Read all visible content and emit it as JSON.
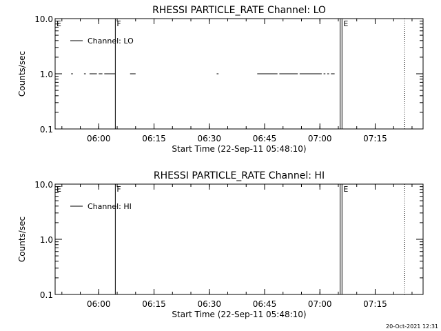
{
  "footer": {
    "timestamp": "20-Oct-2021 12:31"
  },
  "chart_data": [
    {
      "type": "line",
      "title": "RHESSI PARTICLE_RATE Channel: LO",
      "xlabel": "Start Time (22-Sep-11 05:48:10)",
      "ylabel": "Counts/sec",
      "yscale": "log",
      "ylim": [
        0.1,
        10.0
      ],
      "yticks": [
        {
          "value": 0.1,
          "label": "0.1"
        },
        {
          "value": 1.0,
          "label": "1.0"
        },
        {
          "value": 10.0,
          "label": "10.0"
        }
      ],
      "xlim": [
        "05:48:10",
        "07:28:00"
      ],
      "xticks": [
        "06:00",
        "06:15",
        "06:30",
        "06:45",
        "07:00",
        "07:15"
      ],
      "legend": {
        "placement": "top-left",
        "entries": [
          "Channel: LO"
        ]
      },
      "series": [
        {
          "name": "Channel: LO",
          "segments": [
            {
              "x": [
                "05:52:30",
                "05:53:00"
              ],
              "y": 1.0
            },
            {
              "x": [
                "05:56:00",
                "05:56:30"
              ],
              "y": 1.0
            },
            {
              "x": [
                "05:57:30",
                "05:59:30"
              ],
              "y": 1.0
            },
            {
              "x": [
                "06:00:00",
                "06:01:00"
              ],
              "y": 1.0
            },
            {
              "x": [
                "06:01:30",
                "06:04:30"
              ],
              "y": 1.0
            },
            {
              "x": [
                "06:08:30",
                "06:10:00"
              ],
              "y": 1.0
            },
            {
              "x": [
                "06:32:00",
                "06:32:30"
              ],
              "y": 1.0
            },
            {
              "x": [
                "06:43:00",
                "06:48:30"
              ],
              "y": 1.0
            },
            {
              "x": [
                "06:49:00",
                "06:54:00"
              ],
              "y": 1.0
            },
            {
              "x": [
                "06:54:30",
                "07:00:30"
              ],
              "y": 1.0
            },
            {
              "x": [
                "07:01:00",
                "07:01:30"
              ],
              "y": 1.0
            },
            {
              "x": [
                "07:02:00",
                "07:02:30"
              ],
              "y": 1.0
            },
            {
              "x": [
                "07:03:00",
                "07:04:00"
              ],
              "y": 1.0
            }
          ]
        }
      ],
      "markers": [
        {
          "label": "E",
          "x": "05:48:10",
          "style": "solid"
        },
        {
          "label": "F",
          "x": "06:04:30",
          "style": "solid"
        },
        {
          "label": "",
          "x": "07:05:30",
          "style": "solid"
        },
        {
          "label": "E",
          "x": "07:06:00",
          "style": "solid"
        },
        {
          "label": "",
          "x": "07:23:00",
          "style": "dotted"
        }
      ]
    },
    {
      "type": "line",
      "title": "RHESSI PARTICLE_RATE Channel: HI",
      "xlabel": "Start Time (22-Sep-11 05:48:10)",
      "ylabel": "Counts/sec",
      "yscale": "log",
      "ylim": [
        0.1,
        10.0
      ],
      "yticks": [
        {
          "value": 0.1,
          "label": "0.1"
        },
        {
          "value": 1.0,
          "label": "1.0"
        },
        {
          "value": 10.0,
          "label": "10.0"
        }
      ],
      "xlim": [
        "05:48:10",
        "07:28:00"
      ],
      "xticks": [
        "06:00",
        "06:15",
        "06:30",
        "06:45",
        "07:00",
        "07:15"
      ],
      "legend": {
        "placement": "top-left",
        "entries": [
          "Channel: HI"
        ]
      },
      "series": [
        {
          "name": "Channel: HI",
          "segments": []
        }
      ],
      "markers": [
        {
          "label": "E",
          "x": "05:48:10",
          "style": "solid"
        },
        {
          "label": "F",
          "x": "06:04:30",
          "style": "solid"
        },
        {
          "label": "",
          "x": "07:05:30",
          "style": "solid"
        },
        {
          "label": "E",
          "x": "07:06:00",
          "style": "solid"
        },
        {
          "label": "",
          "x": "07:23:00",
          "style": "dotted"
        }
      ]
    }
  ]
}
